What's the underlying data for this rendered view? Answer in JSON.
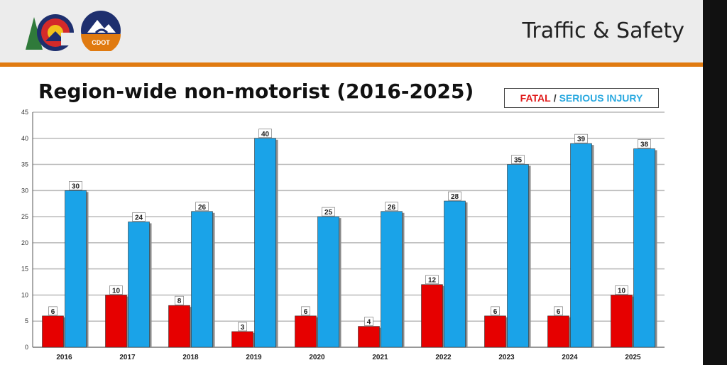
{
  "header": {
    "section_title": "Traffic & Safety",
    "logo_text": "CDOT"
  },
  "legend": {
    "fatal_label": "FATAL",
    "separator": "/",
    "serious_label": "SERIOUS INJURY"
  },
  "colors": {
    "fatal": "#e60000",
    "serious": "#1aa3e8",
    "accent": "#e07a10"
  },
  "chart_data": {
    "type": "bar",
    "title": "Region-wide non-motorist (2016-2025)",
    "categories": [
      "2016",
      "2017",
      "2018",
      "2019",
      "2020",
      "2021",
      "2022",
      "2023",
      "2024",
      "2025"
    ],
    "series": [
      {
        "name": "FATAL",
        "values": [
          6,
          10,
          8,
          3,
          6,
          4,
          12,
          6,
          6,
          10
        ]
      },
      {
        "name": "SERIOUS INJURY",
        "values": [
          30,
          24,
          26,
          40,
          25,
          26,
          28,
          35,
          39,
          38
        ]
      }
    ],
    "ylim": [
      0,
      45
    ],
    "yticks": [
      0,
      5,
      10,
      15,
      20,
      25,
      30,
      35,
      40,
      45
    ],
    "grid": true,
    "legend_position": "top-right"
  }
}
